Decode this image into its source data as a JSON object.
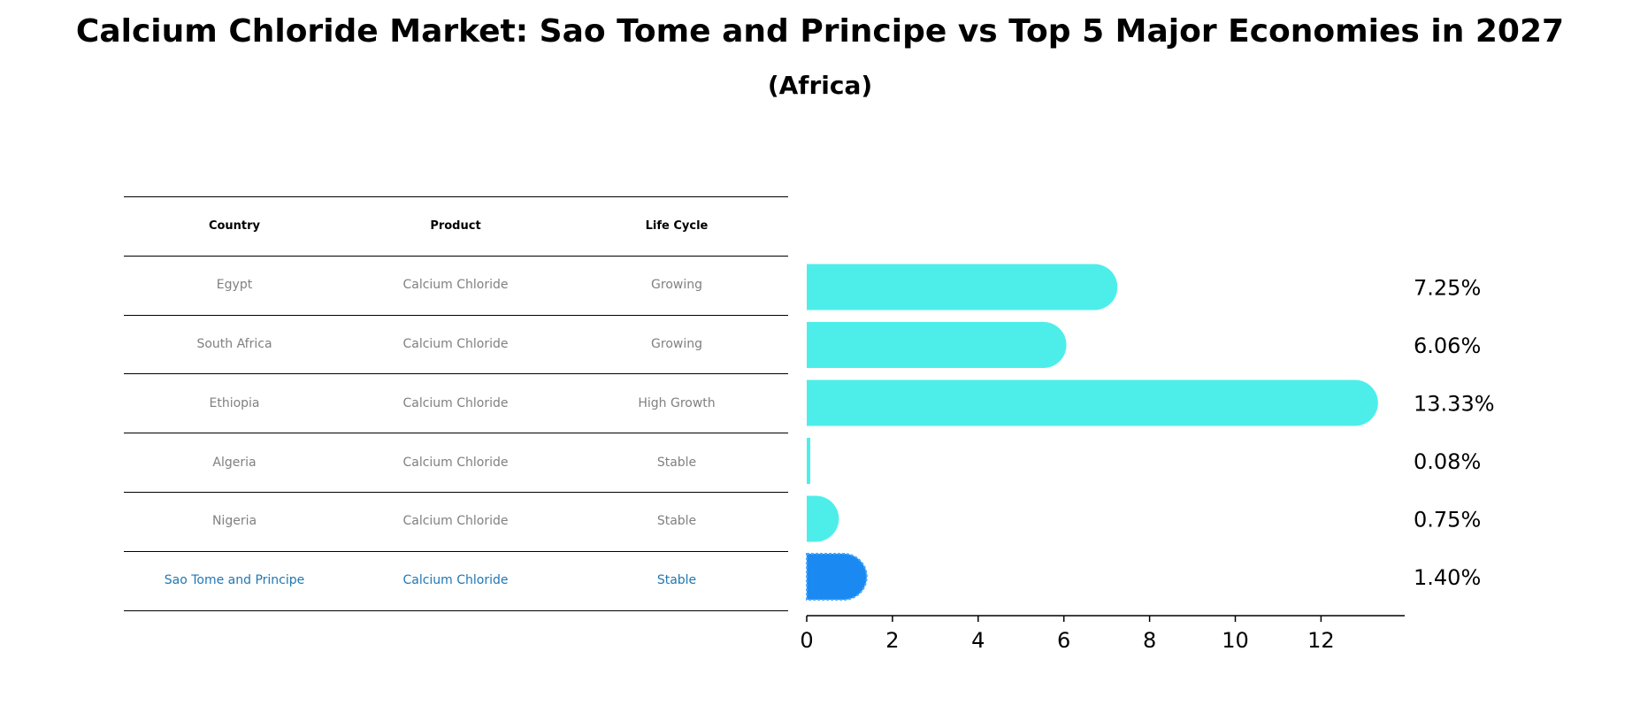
{
  "chart_data": {
    "type": "bar",
    "orientation": "horizontal",
    "title": "Calcium Chloride Market: Sao Tome and Principe vs Top 5 Major Economies in 2027",
    "subtitle": "(Africa)",
    "table_headers": [
      "Country",
      "Product",
      "Life Cycle"
    ],
    "rows": [
      {
        "country": "Egypt",
        "product": "Calcium Chloride",
        "life_cycle": "Growing",
        "value": 7.25,
        "label": "7.25%",
        "highlight": false
      },
      {
        "country": "South Africa",
        "product": "Calcium Chloride",
        "life_cycle": "Growing",
        "value": 6.06,
        "label": "6.06%",
        "highlight": false
      },
      {
        "country": "Ethiopia",
        "product": "Calcium Chloride",
        "life_cycle": "High Growth",
        "value": 13.33,
        "label": "13.33%",
        "highlight": false
      },
      {
        "country": "Algeria",
        "product": "Calcium Chloride",
        "life_cycle": "Stable",
        "value": 0.08,
        "label": "0.08%",
        "highlight": false
      },
      {
        "country": "Nigeria",
        "product": "Calcium Chloride",
        "life_cycle": "Stable",
        "value": 0.75,
        "label": "0.75%",
        "highlight": false
      },
      {
        "country": "Sao Tome and Principe",
        "product": "Calcium Chloride",
        "life_cycle": "Stable",
        "value": 1.4,
        "label": "1.40%",
        "highlight": true
      }
    ],
    "xticks": [
      0,
      2,
      4,
      6,
      8,
      10,
      12
    ],
    "xlim": [
      0,
      14
    ],
    "colors": {
      "bar": "#4deeea",
      "highlight_bar": "#1a8af2",
      "highlight_text": "#1f77b4",
      "table_text": "#808080"
    }
  }
}
